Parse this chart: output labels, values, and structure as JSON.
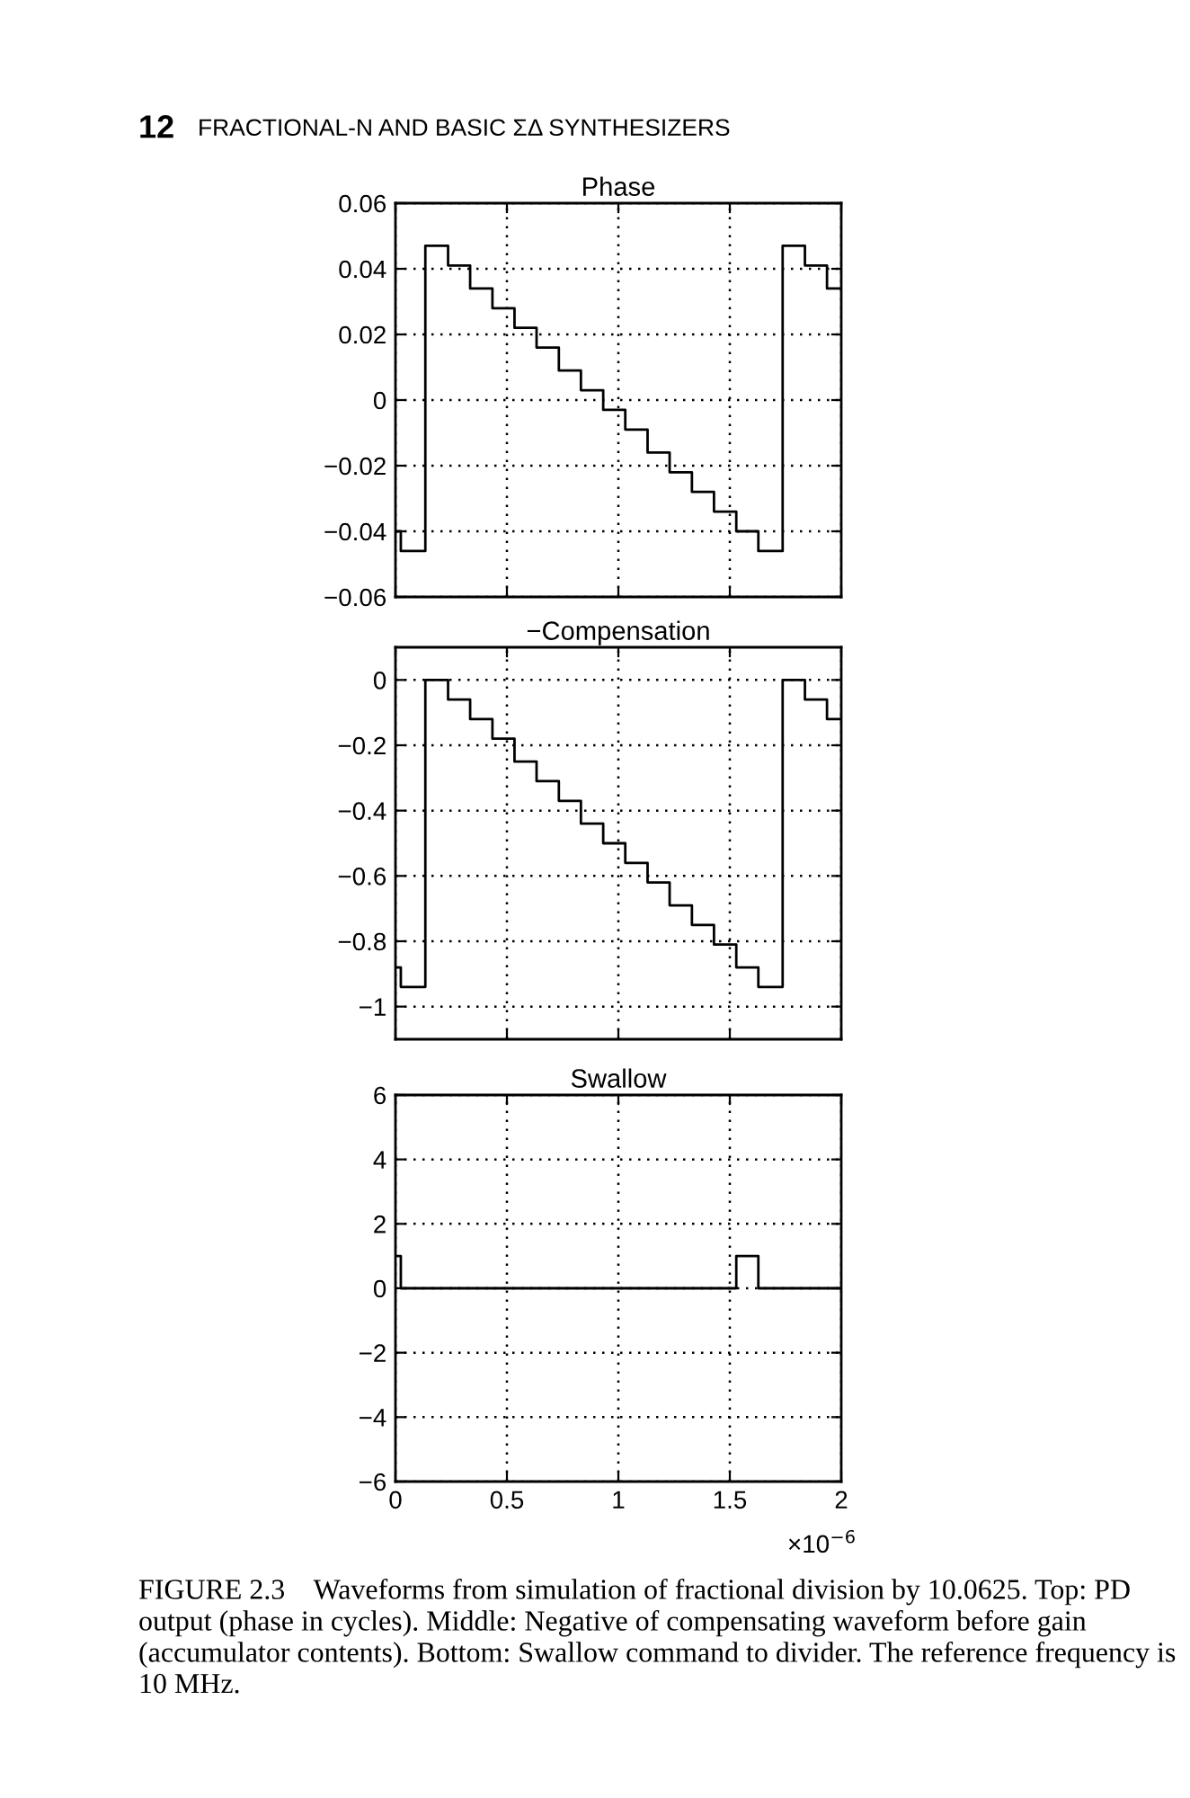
{
  "chart_data": [
    {
      "type": "step",
      "title": "Phase",
      "xlim": [
        0,
        2
      ],
      "ylim": [
        -0.06,
        0.06
      ],
      "xticks": [
        0,
        0.5,
        1,
        1.5,
        2
      ],
      "yticks": [
        -0.06,
        -0.04,
        -0.02,
        0,
        0.02,
        0.04,
        0.06
      ],
      "grid": true,
      "tick_labels": "y",
      "annotations": [
        "12",
        "FRACTIONAL-N AND BASIC ΣΔ SYNTHESIZERS"
      ],
      "series": [
        {
          "color": "#000000",
          "x": [
            0,
            0.024,
            0.134,
            0.236,
            0.335,
            0.435,
            0.534,
            0.633,
            0.733,
            0.832,
            0.932,
            1.031,
            1.131,
            1.23,
            1.33,
            1.429,
            1.529,
            1.628,
            1.737,
            1.837,
            1.936,
            2
          ],
          "values": [
            -0.04,
            -0.046,
            0.047,
            0.041,
            0.034,
            0.028,
            0.022,
            0.016,
            0.009,
            0.003,
            -0.003,
            -0.009,
            -0.016,
            -0.022,
            -0.028,
            -0.034,
            -0.04,
            -0.046,
            0.047,
            0.041,
            0.034,
            0.034
          ]
        }
      ]
    },
    {
      "type": "step",
      "title": "−Compensation",
      "xlim": [
        0,
        2
      ],
      "ylim": [
        -1.1,
        0.1
      ],
      "xticks": [
        0,
        0.5,
        1,
        1.5,
        2
      ],
      "yticks": [
        -1,
        -0.8,
        -0.6,
        -0.4,
        -0.2,
        0
      ],
      "grid": true,
      "tick_labels": "y",
      "series": [
        {
          "color": "#000000",
          "x": [
            0,
            0.024,
            0.134,
            0.236,
            0.335,
            0.435,
            0.534,
            0.633,
            0.733,
            0.832,
            0.932,
            1.031,
            1.131,
            1.23,
            1.33,
            1.429,
            1.529,
            1.628,
            1.737,
            1.837,
            1.936,
            2
          ],
          "values": [
            -0.88,
            -0.94,
            0,
            -0.06,
            -0.12,
            -0.18,
            -0.25,
            -0.31,
            -0.37,
            -0.44,
            -0.5,
            -0.56,
            -0.62,
            -0.69,
            -0.75,
            -0.81,
            -0.88,
            -0.94,
            0,
            -0.06,
            -0.12,
            -0.12
          ]
        }
      ]
    },
    {
      "type": "step",
      "title": "Swallow",
      "xlim": [
        0,
        2
      ],
      "ylim": [
        -6,
        6
      ],
      "xticks": [
        0,
        0.5,
        1,
        1.5,
        2
      ],
      "yticks": [
        -6,
        -4,
        -2,
        0,
        2,
        4,
        6
      ],
      "grid": true,
      "annotations": [
        "×10$^{−6}$",
        "FIGURE 2.3    Waveforms from simulation of fractional division by 10.0625. Top: PD output (phase in cycles). Middle: Negative of compensating waveform before gain (accumulator contents). Bottom: Swallow command to divider. The reference frequency is 10 MHz."
      ],
      "series": [
        {
          "color": "#000000",
          "x": [
            0,
            0.024,
            1.529,
            1.628,
            2
          ],
          "values": [
            1,
            0,
            1,
            0,
            0
          ]
        }
      ]
    }
  ]
}
